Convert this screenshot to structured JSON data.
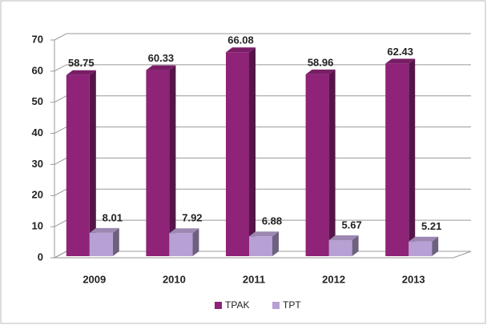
{
  "chart_data": {
    "type": "bar3d",
    "categories": [
      "2009",
      "2010",
      "2011",
      "2012",
      "2013"
    ],
    "series": [
      {
        "name": "TPAK",
        "color": "#8e2378",
        "values": [
          58.75,
          60.33,
          66.08,
          58.96,
          62.43
        ]
      },
      {
        "name": "TPT",
        "color": "#b7a0d3",
        "values": [
          8.01,
          7.92,
          6.88,
          5.67,
          5.21
        ]
      }
    ],
    "ylim": [
      0,
      70
    ],
    "yticks": [
      0,
      10,
      20,
      30,
      40,
      50,
      60,
      70
    ],
    "grid": true,
    "legend": "bottom"
  }
}
